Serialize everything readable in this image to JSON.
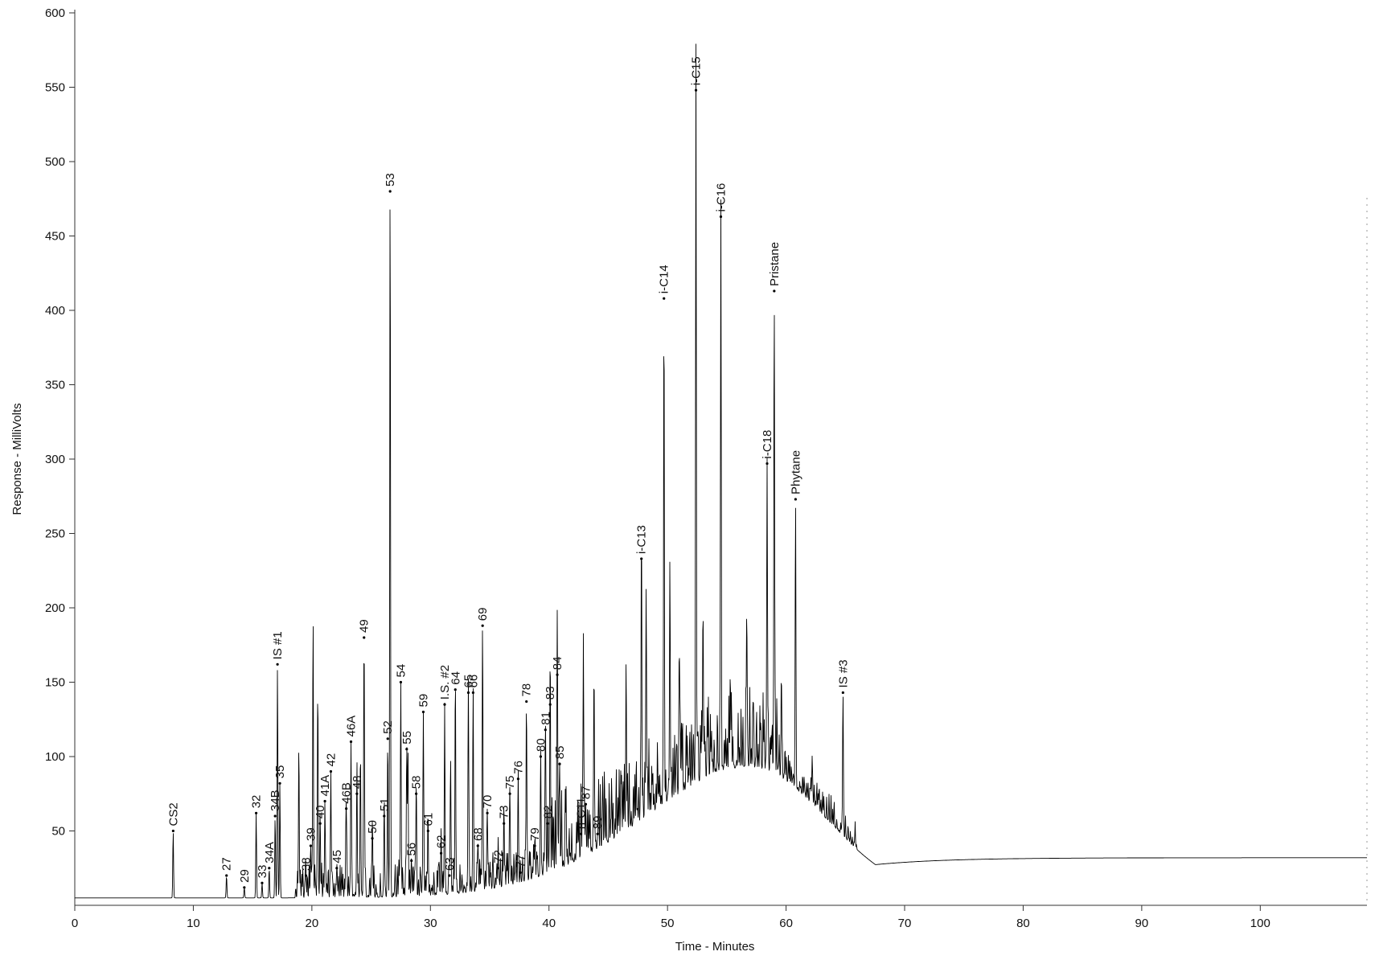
{
  "chart_data": {
    "type": "line",
    "title": "",
    "xlabel": "Time - Minutes",
    "ylabel": "Response - MilliVolts",
    "xlim": [
      0,
      109
    ],
    "ylim": [
      0,
      600
    ],
    "x_ticks": [
      0,
      10,
      20,
      30,
      40,
      50,
      60,
      70,
      80,
      90,
      100
    ],
    "y_ticks": [
      50,
      100,
      150,
      200,
      250,
      300,
      350,
      400,
      450,
      500,
      550,
      600
    ],
    "grid": false,
    "baseline": 5,
    "hump": {
      "center": 57,
      "width": 9,
      "height": 88
    },
    "tail_level": 32,
    "peaks": [
      {
        "label": "CS2",
        "x": 8.3,
        "y": 50
      },
      {
        "label": "27",
        "x": 12.8,
        "y": 20
      },
      {
        "label": "29",
        "x": 14.3,
        "y": 12
      },
      {
        "label": "32",
        "x": 15.3,
        "y": 62
      },
      {
        "label": "33",
        "x": 15.8,
        "y": 15
      },
      {
        "label": "34A",
        "x": 16.4,
        "y": 25
      },
      {
        "label": "34B",
        "x": 16.9,
        "y": 60
      },
      {
        "label": "35",
        "x": 17.3,
        "y": 82
      },
      {
        "label": "IS #1",
        "x": 17.1,
        "y": 162
      },
      {
        "label": "38",
        "x": 19.5,
        "y": 20
      },
      {
        "label": "39",
        "x": 19.9,
        "y": 40
      },
      {
        "label": "40",
        "x": 20.7,
        "y": 55
      },
      {
        "label": "41A",
        "x": 21.1,
        "y": 70
      },
      {
        "label": "42",
        "x": 21.6,
        "y": 90
      },
      {
        "label": "45",
        "x": 22.1,
        "y": 25
      },
      {
        "label": "46B",
        "x": 22.9,
        "y": 65
      },
      {
        "label": "46A",
        "x": 23.3,
        "y": 110
      },
      {
        "label": "48",
        "x": 23.8,
        "y": 75
      },
      {
        "label": "49",
        "x": 24.4,
        "y": 180
      },
      {
        "label": "50",
        "x": 25.1,
        "y": 45
      },
      {
        "label": "51",
        "x": 26.1,
        "y": 60
      },
      {
        "label": "52",
        "x": 26.4,
        "y": 112
      },
      {
        "label": "53",
        "x": 26.6,
        "y": 480
      },
      {
        "label": "54",
        "x": 27.5,
        "y": 150
      },
      {
        "label": "55",
        "x": 28.0,
        "y": 105
      },
      {
        "label": "56",
        "x": 28.4,
        "y": 30
      },
      {
        "label": "58",
        "x": 28.8,
        "y": 75
      },
      {
        "label": "59",
        "x": 29.4,
        "y": 130
      },
      {
        "label": "61",
        "x": 29.8,
        "y": 50
      },
      {
        "label": "62",
        "x": 30.9,
        "y": 35
      },
      {
        "label": "I.S. #2",
        "x": 31.2,
        "y": 135
      },
      {
        "label": "63",
        "x": 31.6,
        "y": 20
      },
      {
        "label": "64",
        "x": 32.1,
        "y": 145
      },
      {
        "label": "65",
        "x": 33.2,
        "y": 143
      },
      {
        "label": "66",
        "x": 33.6,
        "y": 143
      },
      {
        "label": "68",
        "x": 34.0,
        "y": 40
      },
      {
        "label": "69",
        "x": 34.4,
        "y": 188
      },
      {
        "label": "70",
        "x": 34.8,
        "y": 62
      },
      {
        "label": "72",
        "x": 35.7,
        "y": 25
      },
      {
        "label": "73",
        "x": 36.2,
        "y": 55
      },
      {
        "label": "75",
        "x": 36.7,
        "y": 75
      },
      {
        "label": "76",
        "x": 37.4,
        "y": 85
      },
      {
        "label": "77",
        "x": 37.6,
        "y": 22
      },
      {
        "label": "78",
        "x": 38.1,
        "y": 137
      },
      {
        "label": "79",
        "x": 38.8,
        "y": 40
      },
      {
        "label": "80",
        "x": 39.3,
        "y": 100
      },
      {
        "label": "81",
        "x": 39.7,
        "y": 118
      },
      {
        "label": "82",
        "x": 39.9,
        "y": 55
      },
      {
        "label": "83",
        "x": 40.1,
        "y": 135
      },
      {
        "label": "84",
        "x": 40.7,
        "y": 155
      },
      {
        "label": "85",
        "x": 40.9,
        "y": 95
      },
      {
        "label": "n-C11",
        "x": 42.7,
        "y": 48
      },
      {
        "label": "87",
        "x": 43.1,
        "y": 68
      },
      {
        "label": "89",
        "x": 44.1,
        "y": 48
      },
      {
        "label": "i-C13",
        "x": 47.8,
        "y": 233
      },
      {
        "label": "i-C14",
        "x": 49.7,
        "y": 408
      },
      {
        "label": "i-C15",
        "x": 52.4,
        "y": 548
      },
      {
        "label": "i-C16",
        "x": 54.5,
        "y": 463
      },
      {
        "label": "i-C18",
        "x": 58.4,
        "y": 297
      },
      {
        "label": "Pristane",
        "x": 59.0,
        "y": 413
      },
      {
        "label": "Phytane",
        "x": 60.8,
        "y": 273
      },
      {
        "label": "IS #3",
        "x": 64.8,
        "y": 143
      }
    ],
    "unlabeled_peaks": [
      {
        "x": 18.9,
        "y": 103
      },
      {
        "x": 20.1,
        "y": 182
      },
      {
        "x": 20.5,
        "y": 145
      },
      {
        "x": 24.1,
        "y": 100
      },
      {
        "x": 28.1,
        "y": 95
      },
      {
        "x": 31.7,
        "y": 100
      },
      {
        "x": 42.9,
        "y": 145
      },
      {
        "x": 43.8,
        "y": 160
      },
      {
        "x": 46.5,
        "y": 125
      },
      {
        "x": 48.2,
        "y": 210
      },
      {
        "x": 50.2,
        "y": 228
      },
      {
        "x": 51.0,
        "y": 160
      },
      {
        "x": 53.0,
        "y": 190
      },
      {
        "x": 55.3,
        "y": 135
      },
      {
        "x": 56.7,
        "y": 165
      },
      {
        "x": 59.6,
        "y": 130
      },
      {
        "x": 62.2,
        "y": 100
      }
    ]
  }
}
